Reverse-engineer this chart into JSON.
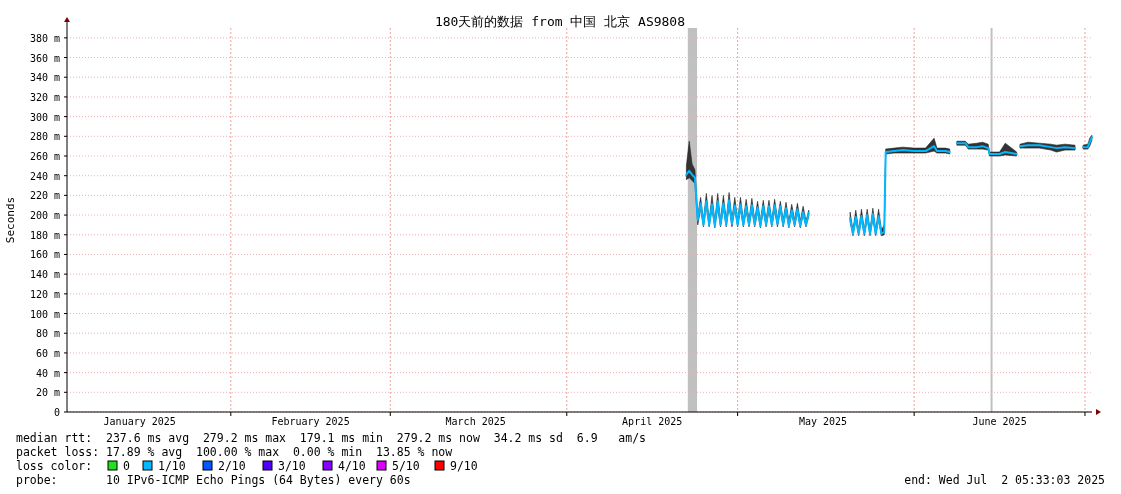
{
  "chart_data": {
    "type": "line",
    "title": "180天前的数据 from 中国 北京 AS9808",
    "ylabel": "Seconds",
    "xlim": [
      "2025-01-03T05:33",
      "2025-07-02T05:33"
    ],
    "xticks": [
      {
        "value": "2025-01-16",
        "label": "January 2025"
      },
      {
        "value": "2025-02-01",
        "label": null
      },
      {
        "value": "2025-02-15",
        "label": "February 2025"
      },
      {
        "value": "2025-03-01",
        "label": null
      },
      {
        "value": "2025-03-16",
        "label": "March 2025"
      },
      {
        "value": "2025-04-01",
        "label": null
      },
      {
        "value": "2025-04-16",
        "label": "April 2025"
      },
      {
        "value": "2025-05-01",
        "label": null
      },
      {
        "value": "2025-05-16",
        "label": "May 2025"
      },
      {
        "value": "2025-06-01",
        "label": null
      },
      {
        "value": "2025-06-16",
        "label": "June 2025"
      },
      {
        "value": "2025-07-01",
        "label": null
      }
    ],
    "ylim": [
      0,
      390
    ],
    "yticks": [
      0,
      {
        "value": 20,
        "label": "20 m"
      },
      {
        "value": 40,
        "label": "40 m"
      },
      {
        "value": 60,
        "label": "60 m"
      },
      {
        "value": 80,
        "label": "80 m"
      },
      {
        "value": 100,
        "label": "100 m"
      },
      {
        "value": 120,
        "label": "120 m"
      },
      {
        "value": 140,
        "label": "140 m"
      },
      {
        "value": 160,
        "label": "160 m"
      },
      {
        "value": 180,
        "label": "180 m"
      },
      {
        "value": 200,
        "label": "200 m"
      },
      {
        "value": 220,
        "label": "220 m"
      },
      {
        "value": 240,
        "label": "240 m"
      },
      {
        "value": 260,
        "label": "260 m"
      },
      {
        "value": 280,
        "label": "280 m"
      },
      {
        "value": 300,
        "label": "300 m"
      },
      {
        "value": 320,
        "label": "320 m"
      },
      {
        "value": 340,
        "label": "340 m"
      },
      {
        "value": 360,
        "label": "360 m"
      },
      {
        "value": 380,
        "label": "380 m"
      }
    ],
    "grid": true,
    "line_style": "solid",
    "bands": [
      {
        "axis": "x",
        "from": "2025-04-22T06:00",
        "to": "2025-04-23T21:00",
        "color": "#c0c0c0"
      },
      {
        "axis": "x",
        "from": "2025-06-14T10:00",
        "to": "2025-06-14T12:00",
        "color": "#c0c0c0"
      }
    ],
    "series": [
      {
        "color": "#00b8ff",
        "x": [
          "2025-04-22T00:00",
          "2025-04-22T12:00",
          "2025-04-23T00:00",
          "2025-04-23T12:00",
          "2025-04-24T00:00",
          "2025-04-24T12:00",
          "2025-04-25T00:00",
          "2025-04-25T12:00",
          "2025-04-26T00:00",
          "2025-04-26T12:00",
          "2025-04-27T00:00",
          "2025-04-27T12:00",
          "2025-04-28T00:00",
          "2025-04-28T12:00",
          "2025-04-29T00:00",
          "2025-04-29T12:00",
          "2025-04-30T00:00",
          "2025-04-30T12:00",
          "2025-05-01T00:00",
          "2025-05-01T12:00",
          "2025-05-02T00:00",
          "2025-05-02T12:00",
          "2025-05-03T00:00",
          "2025-05-03T12:00",
          "2025-05-04T00:00",
          "2025-05-04T12:00",
          "2025-05-05T00:00",
          "2025-05-05T12:00",
          "2025-05-06T00:00",
          "2025-05-06T12:00",
          "2025-05-07T00:00",
          "2025-05-07T12:00",
          "2025-05-08T00:00",
          "2025-05-08T12:00",
          "2025-05-09T00:00",
          "2025-05-09T12:00",
          "2025-05-10T00:00",
          "2025-05-10T12:00",
          "2025-05-11T00:00",
          "2025-05-11T12:00",
          "2025-05-12T00:00",
          "2025-05-12T12:00",
          "2025-05-13T00:00",
          "2025-05-13T12:00",
          "2025-05-16T00:00",
          "2025-05-20T18:00",
          "2025-05-21T06:00",
          "2025-05-21T18:00",
          "2025-05-22T06:00",
          "2025-05-22T18:00",
          "2025-05-23T06:00",
          "2025-05-23T18:00",
          "2025-05-24T06:00",
          "2025-05-24T18:00",
          "2025-05-25T06:00",
          "2025-05-25T18:00",
          "2025-05-26T06:00",
          "2025-05-26T18:00",
          "2025-05-27T00:00",
          "2025-05-28T12:00",
          "2025-05-30T00:00",
          "2025-06-01T00:00",
          "2025-06-03T00:00",
          "2025-06-04T12:00",
          "2025-06-05T00:00",
          "2025-06-06T12:00",
          "2025-06-07T06:00",
          "2025-06-08T00:00",
          "2025-06-08T12:00",
          "2025-06-10T00:00",
          "2025-06-10T12:00",
          "2025-06-12T00:00",
          "2025-06-13T00:00",
          "2025-06-14T00:00",
          "2025-06-14T06:00",
          "2025-06-16T00:00",
          "2025-06-17T00:00",
          "2025-06-19T00:00",
          "2025-06-19T08:00",
          "2025-06-19T14:00",
          "2025-06-21T00:00",
          "2025-06-23T00:00",
          "2025-06-25T00:00",
          "2025-06-26T00:00",
          "2025-06-27T12:00",
          "2025-06-29T06:00",
          "2025-06-30T00:00",
          "2025-06-30T16:00",
          "2025-07-01T12:00",
          "2025-07-01T20:00",
          "2025-07-02T05:00"
        ],
        "values": [
          241,
          245,
          241,
          238,
          195,
          212,
          190,
          214,
          190,
          211,
          189,
          214,
          190,
          212,
          190,
          215,
          191,
          210,
          190,
          211,
          190,
          209,
          190,
          210,
          190,
          208,
          189,
          209,
          190,
          209,
          190,
          210,
          191,
          209,
          190,
          207,
          189,
          205,
          190,
          206,
          189,
          203,
          190,
          202,
          null,
          197,
          181,
          198,
          181,
          199,
          181,
          200,
          181,
          201,
          181,
          199,
          181,
          183,
          264,
          265,
          266,
          265,
          265,
          270,
          265,
          265,
          264,
          null,
          273,
          273,
          269,
          269,
          270,
          268,
          262,
          262,
          264,
          262,
          null,
          270,
          271,
          271,
          269,
          268,
          269,
          268,
          null,
          269,
          269,
          274,
          279
        ],
        "lower": [
          236,
          238,
          235,
          232,
          190,
          206,
          188,
          208,
          188,
          206,
          187,
          207,
          188,
          206,
          188,
          208,
          188,
          205,
          188,
          205,
          188,
          204,
          188,
          205,
          188,
          203,
          187,
          204,
          188,
          204,
          188,
          204,
          188,
          204,
          188,
          203,
          187,
          201,
          188,
          202,
          187,
          200,
          188,
          199,
          null,
          193,
          179,
          194,
          179,
          195,
          179,
          196,
          179,
          196,
          179,
          195,
          179,
          180,
          262,
          263,
          263,
          263,
          263,
          265,
          263,
          263,
          262,
          null,
          271,
          271,
          267,
          267,
          267,
          266,
          260,
          260,
          261,
          260,
          null,
          268,
          268,
          268,
          266,
          264,
          266,
          266,
          null,
          267,
          267,
          270,
          276
        ],
        "upper": [
          250,
          275,
          252,
          246,
          200,
          218,
          195,
          222,
          195,
          220,
          194,
          222,
          195,
          220,
          195,
          223,
          196,
          218,
          195,
          218,
          195,
          216,
          195,
          217,
          195,
          214,
          194,
          215,
          195,
          215,
          195,
          216,
          196,
          214,
          195,
          213,
          194,
          211,
          195,
          212,
          194,
          209,
          194,
          205,
          null,
          203,
          185,
          205,
          185,
          206,
          185,
          206,
          185,
          207,
          185,
          206,
          185,
          190,
          267,
          268,
          269,
          268,
          268,
          278,
          268,
          268,
          267,
          null,
          275,
          275,
          272,
          273,
          274,
          272,
          264,
          264,
          273,
          264,
          null,
          272,
          274,
          273,
          272,
          271,
          272,
          271,
          null,
          271,
          272,
          278,
          281
        ]
      }
    ],
    "annotations": [
      "median rtt:  237.6 ms avg  279.2 ms max  179.1 ms min  279.2 ms now  34.2 ms sd  6.9   am/s",
      "packet loss: 17.89 % avg  100.00 % max  0.00 % min  13.85 % now",
      "loss color:",
      "0",
      "1/10",
      "2/10",
      "3/10",
      "4/10",
      "5/10",
      "9/10",
      "probe:       10 IPv6-ICMP Echo Pings (64 Bytes) every 60s",
      "end: Wed Jul  2 05:33:03 2025"
    ]
  }
}
